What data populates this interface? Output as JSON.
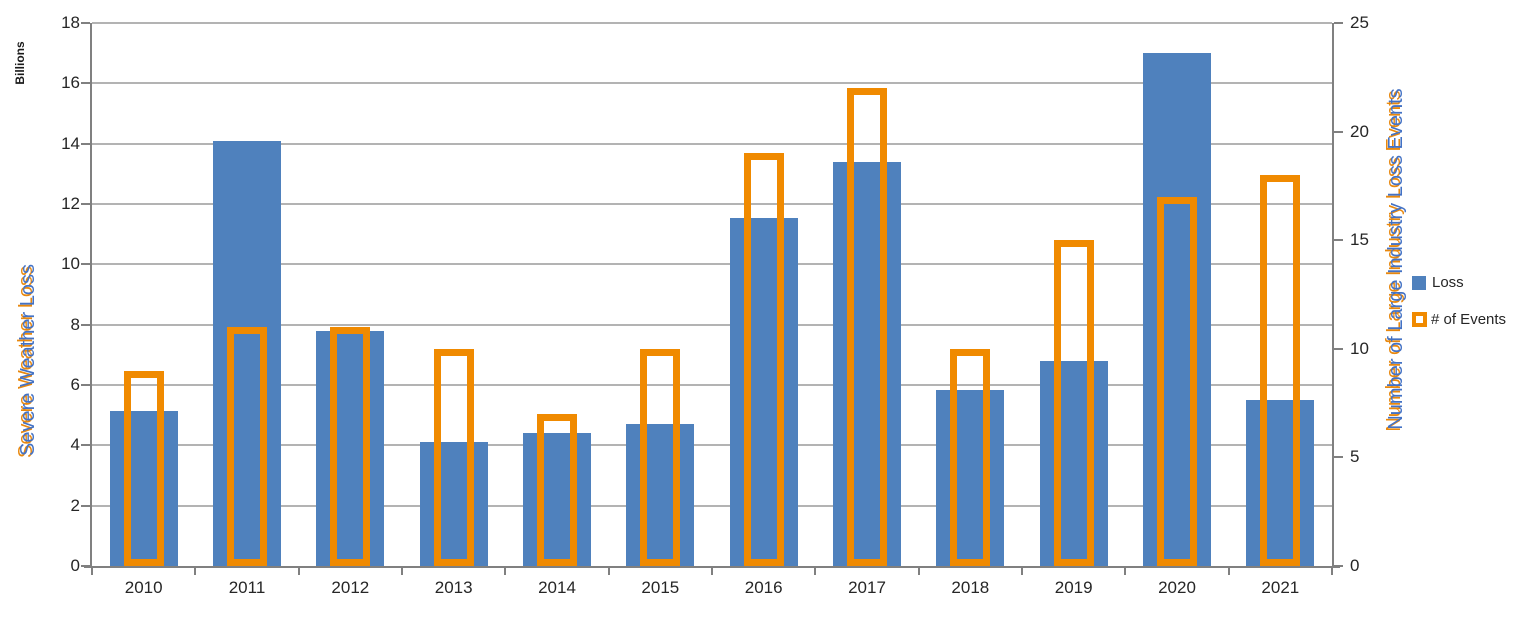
{
  "chart_data": {
    "type": "bar",
    "categories": [
      "2010",
      "2011",
      "2012",
      "2013",
      "2014",
      "2015",
      "2016",
      "2017",
      "2018",
      "2019",
      "2020",
      "2021"
    ],
    "series": [
      {
        "name": "Loss",
        "axis": "left",
        "style": "filled",
        "color": "#4F81BD",
        "values": [
          5.15,
          14.1,
          7.8,
          4.1,
          4.4,
          4.7,
          11.55,
          13.4,
          5.85,
          6.8,
          17.0,
          5.5
        ]
      },
      {
        "name": "# of Events",
        "axis": "right",
        "style": "outline",
        "color": "#F08A00",
        "values": [
          9,
          11,
          11,
          10,
          7,
          10,
          19,
          22,
          10,
          15,
          17,
          18
        ]
      }
    ],
    "left_axis": {
      "title": "Severe Weather Loss",
      "units_label": "Billions",
      "min": 0,
      "max": 18,
      "step": 2,
      "tick_labels": [
        "0",
        "2",
        "4",
        "6",
        "8",
        "10",
        "12",
        "14",
        "16",
        "18"
      ]
    },
    "right_axis": {
      "title": "Number of Large Industry Loss Events",
      "min": 0,
      "max": 25,
      "step": 5,
      "tick_labels": [
        "0",
        "5",
        "10",
        "15",
        "20",
        "25"
      ]
    },
    "grid": true,
    "legend_position": "right",
    "legend": [
      "Loss",
      "# of Events"
    ]
  },
  "colors": {
    "loss_bar": "#4F81BD",
    "events_bar": "#F08A00",
    "gridline": "#B3B3B3",
    "axis_line": "#808080",
    "tick_text": "#262626",
    "axis_title_text": "#4472C4",
    "axis_title_shadow": "#E8880E"
  }
}
